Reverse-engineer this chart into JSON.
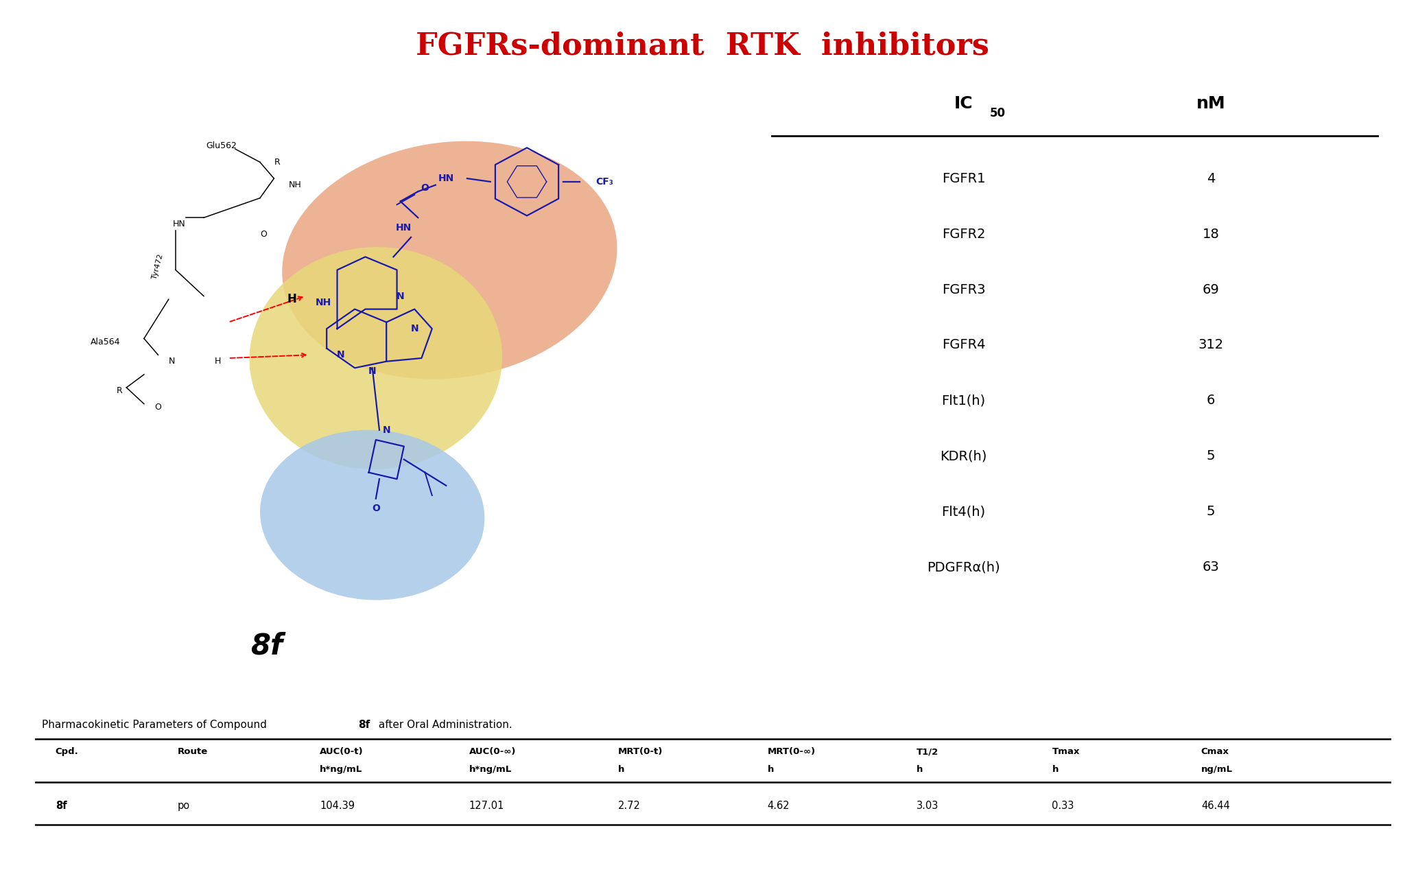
{
  "title": "FGFRs-dominant  RTK  inhibitors",
  "title_color": "#cc0000",
  "title_fontsize": 32,
  "ic50_rows": [
    [
      "FGFR1",
      "4"
    ],
    [
      "FGFR2",
      "18"
    ],
    [
      "FGFR3",
      "69"
    ],
    [
      "FGFR4",
      "312"
    ],
    [
      "Flt1(h)",
      "6"
    ],
    [
      "KDR(h)",
      "5"
    ],
    [
      "Flt4(h)",
      "5"
    ],
    [
      "PDGFRα(h)",
      "63"
    ]
  ],
  "pk_caption_normal": "Pharmacokinetic Parameters of Compound ",
  "pk_caption_bold": "8f",
  "pk_caption_end": " after Oral Administration.",
  "pk_headers_line1": [
    "Cpd.",
    "Route",
    "AUC(0-t)",
    "AUC(0-∞)",
    "MRT(0-t)",
    "MRT(0-∞)",
    "T1/2",
    "Tmax",
    "Cmax"
  ],
  "pk_headers_line2": [
    "",
    "",
    "h*ng/mL",
    "h*ng/mL",
    "h",
    "h",
    "h",
    "h",
    "ng/mL"
  ],
  "pk_data": [
    "8f",
    "po",
    "104.39",
    "127.01",
    "2.72",
    "4.62",
    "3.03",
    "0.33",
    "46.44"
  ],
  "compound_label": "8f",
  "bg_color": "#ffffff",
  "orange_blob_color": "#e8a07a",
  "yellow_blob_color": "#e8d87a",
  "blue_blob_color": "#a8c8e8",
  "mol_color": "#1a1aaa",
  "mol_fontsize": 10,
  "lbl_fontsize": 9,
  "lbl_color": "black"
}
